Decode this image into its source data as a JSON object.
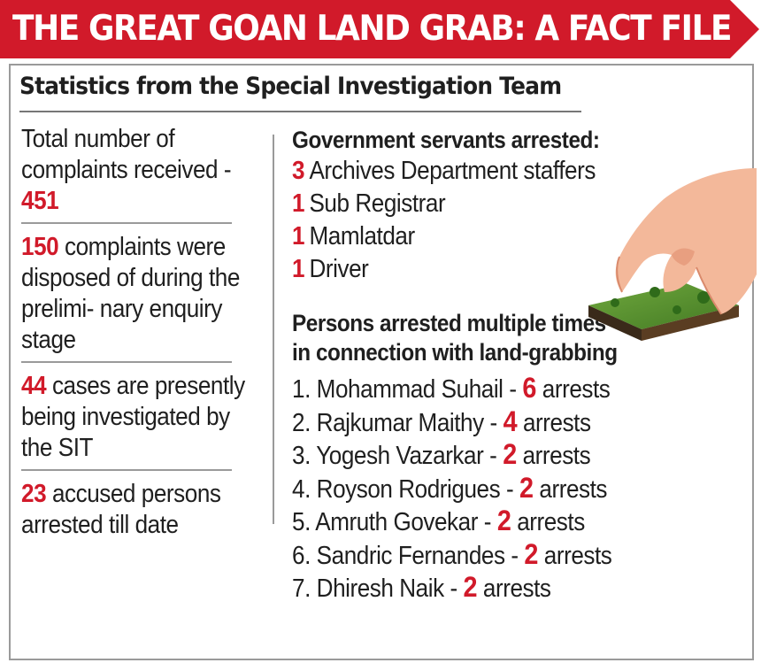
{
  "banner": {
    "title": "THE GREAT GOAN LAND GRAB: A FACT FILE",
    "color": "#d11a2a"
  },
  "subtitle": "Statistics from the Special Investigation Team",
  "accent_color": "#d11a2a",
  "left_stats": [
    {
      "before": "Total number of complaints received - ",
      "number": "451",
      "after": ""
    },
    {
      "before": "",
      "number": "150",
      "after": " complaints were disposed of during the prelimi- nary enquiry stage"
    },
    {
      "before": "",
      "number": "44",
      "after": " cases are presently being investigated by the SIT"
    },
    {
      "before": "",
      "number": "23",
      "after": " accused persons arrested till date"
    }
  ],
  "government_servants": {
    "heading": "Government servants arrested:",
    "items": [
      {
        "count": "3",
        "label": "Archives Department staffers"
      },
      {
        "count": "1",
        "label": "Sub Registrar"
      },
      {
        "count": "1",
        "label": "Mamlatdar"
      },
      {
        "count": "1",
        "label": "Driver"
      }
    ]
  },
  "repeat_offenders": {
    "heading": "Persons arrested multiple times in connection with land-grabbing",
    "items": [
      {
        "index": "1.",
        "name": "Mohammad Suhail",
        "count": "6",
        "unit": "arrests"
      },
      {
        "index": "2.",
        "name": "Rajkumar Maithy",
        "count": "4",
        "unit": "arrests"
      },
      {
        "index": "3.",
        "name": "Yogesh Vazarkar",
        "count": "2",
        "unit": "arrests"
      },
      {
        "index": "4.",
        "name": "Royson Rodrigues",
        "count": "2",
        "unit": "arrests"
      },
      {
        "index": "5.",
        "name": "Amruth Govekar",
        "count": "2",
        "unit": "arrests"
      },
      {
        "index": "6.",
        "name": "Sandric Fernandes",
        "count": "2",
        "unit": "arrests"
      },
      {
        "index": "7.",
        "name": "Dhiresh Naik",
        "count": "2",
        "unit": "arrests"
      }
    ]
  },
  "illustration": {
    "icon": "hand-grabbing-land-icon"
  }
}
